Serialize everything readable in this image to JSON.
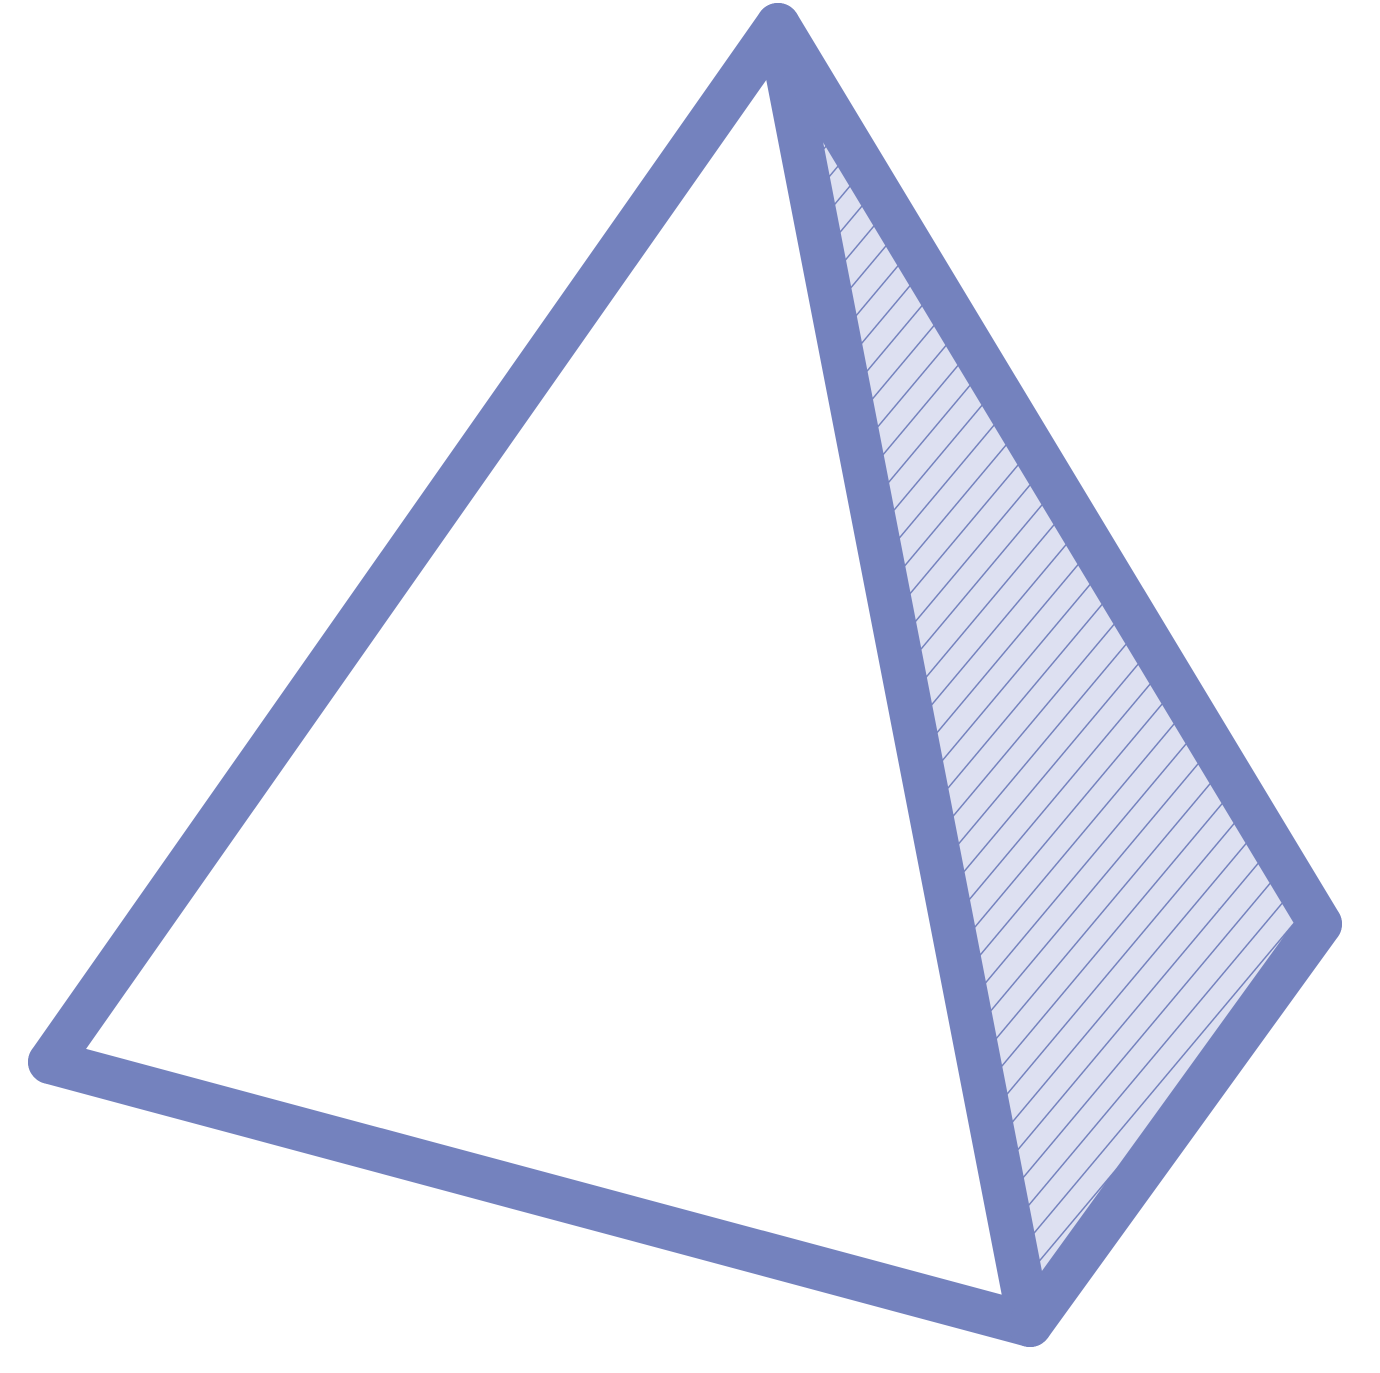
{
  "figure": {
    "shape": "tetrahedron",
    "faces": {
      "front": {
        "style": "plain"
      },
      "side": {
        "style": "hatched"
      }
    }
  },
  "colors": {
    "edge": "#7482be",
    "hatch_fill": "#dde0f1",
    "hatch_line": "#7482be",
    "background": "#ffffff"
  }
}
